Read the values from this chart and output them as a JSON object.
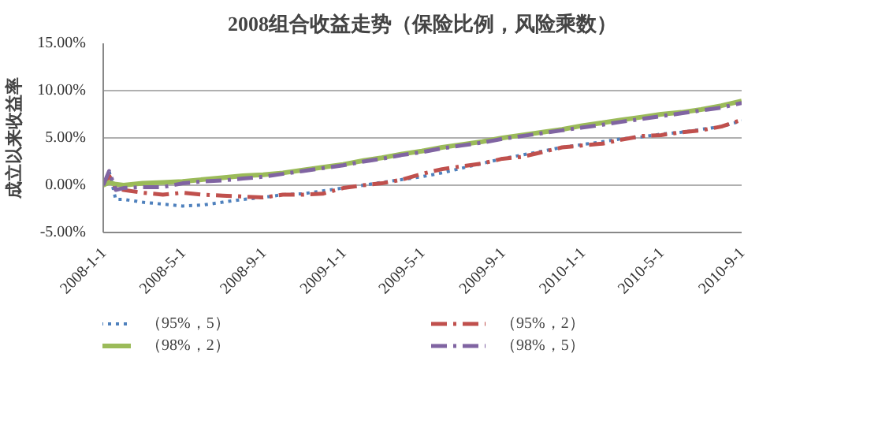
{
  "chart_data": {
    "type": "line",
    "title": "2008组合收益走势（保险比例，风险乘数）",
    "ylabel": "成立以来收益率",
    "x": [
      "2008-01-01",
      "2008-01-10",
      "2008-01-20",
      "2008-02-01",
      "2008-03-01",
      "2008-04-01",
      "2008-05-01",
      "2008-06-01",
      "2008-07-01",
      "2008-08-01",
      "2008-09-01",
      "2008-10-01",
      "2008-11-01",
      "2008-12-01",
      "2009-01-01",
      "2009-02-01",
      "2009-03-01",
      "2009-04-01",
      "2009-05-01",
      "2009-06-01",
      "2009-07-01",
      "2009-08-01",
      "2009-09-01",
      "2009-10-01",
      "2009-11-01",
      "2009-12-01",
      "2010-01-01",
      "2010-02-01",
      "2010-03-01",
      "2010-04-01",
      "2010-05-01",
      "2010-06-01",
      "2010-07-01",
      "2010-08-01",
      "2010-09-01"
    ],
    "series": [
      {
        "name": "（95%，5）",
        "color": "#4f81bd",
        "line_style": "dotted",
        "values": [
          0,
          1.5,
          -1.5,
          -1.5,
          -1.8,
          -2.0,
          -2.2,
          -2.1,
          -1.8,
          -1.5,
          -1.3,
          -1.0,
          -0.9,
          -0.6,
          -0.3,
          0.0,
          0.3,
          0.6,
          0.9,
          1.3,
          1.8,
          2.3,
          2.8,
          3.2,
          3.6,
          4.0,
          4.3,
          4.6,
          4.9,
          5.1,
          5.4,
          5.6,
          5.9,
          6.2,
          6.8
        ]
      },
      {
        "name": "（95%，2）",
        "color": "#c0504d",
        "line_style": "dashdot",
        "values": [
          0,
          1.0,
          -0.3,
          -0.5,
          -0.8,
          -1.0,
          -0.8,
          -1.0,
          -1.1,
          -1.2,
          -1.3,
          -1.0,
          -1.0,
          -0.9,
          -0.3,
          0.0,
          0.2,
          0.6,
          1.2,
          1.7,
          2.0,
          2.3,
          2.8,
          3.0,
          3.5,
          4.0,
          4.2,
          4.4,
          4.8,
          5.2,
          5.3,
          5.6,
          5.8,
          6.2,
          6.9
        ]
      },
      {
        "name": "（98%，2）",
        "color": "#9bbb59",
        "line_style": "solid",
        "values": [
          0,
          0.3,
          0.1,
          0.0,
          0.2,
          0.3,
          0.4,
          0.6,
          0.8,
          1.0,
          1.1,
          1.3,
          1.6,
          1.9,
          2.2,
          2.6,
          2.9,
          3.3,
          3.6,
          4.0,
          4.3,
          4.6,
          5.0,
          5.3,
          5.6,
          5.9,
          6.3,
          6.6,
          6.9,
          7.2,
          7.5,
          7.7,
          8.0,
          8.4,
          8.9
        ]
      },
      {
        "name": "（98%，5）",
        "color": "#8064a2",
        "line_style": "dashdot",
        "values": [
          0,
          1.5,
          -0.5,
          -0.3,
          -0.2,
          -0.2,
          0.2,
          0.4,
          0.5,
          0.7,
          0.9,
          1.2,
          1.5,
          1.8,
          2.1,
          2.5,
          2.8,
          3.2,
          3.5,
          3.9,
          4.2,
          4.5,
          4.9,
          5.2,
          5.5,
          5.8,
          6.1,
          6.4,
          6.7,
          7.0,
          7.3,
          7.6,
          7.9,
          8.2,
          8.7
        ]
      }
    ],
    "ylim": [
      -5,
      15
    ],
    "yticks": [
      {
        "value": -5,
        "label": "-5.00%"
      },
      {
        "value": 0,
        "label": "0.00%"
      },
      {
        "value": 5,
        "label": "5.00%"
      },
      {
        "value": 10,
        "label": "10.00%"
      },
      {
        "value": 15,
        "label": "15.00%"
      }
    ],
    "xlim": [
      "2008-01-01",
      "2010-09-01"
    ],
    "xticks": [
      {
        "value": "2008-01-01",
        "label": "2008-1-1"
      },
      {
        "value": "2008-05-01",
        "label": "2008-5-1"
      },
      {
        "value": "2008-09-01",
        "label": "2008-9-1"
      },
      {
        "value": "2009-01-01",
        "label": "2009-1-1"
      },
      {
        "value": "2009-05-01",
        "label": "2009-5-1"
      },
      {
        "value": "2009-09-01",
        "label": "2009-9-1"
      },
      {
        "value": "2010-01-01",
        "label": "2010-1-1"
      },
      {
        "value": "2010-05-01",
        "label": "2010-5-1"
      },
      {
        "value": "2010-09-01",
        "label": "2010-9-1"
      }
    ],
    "grid": "y",
    "legend": "bottom",
    "marker": "none"
  }
}
